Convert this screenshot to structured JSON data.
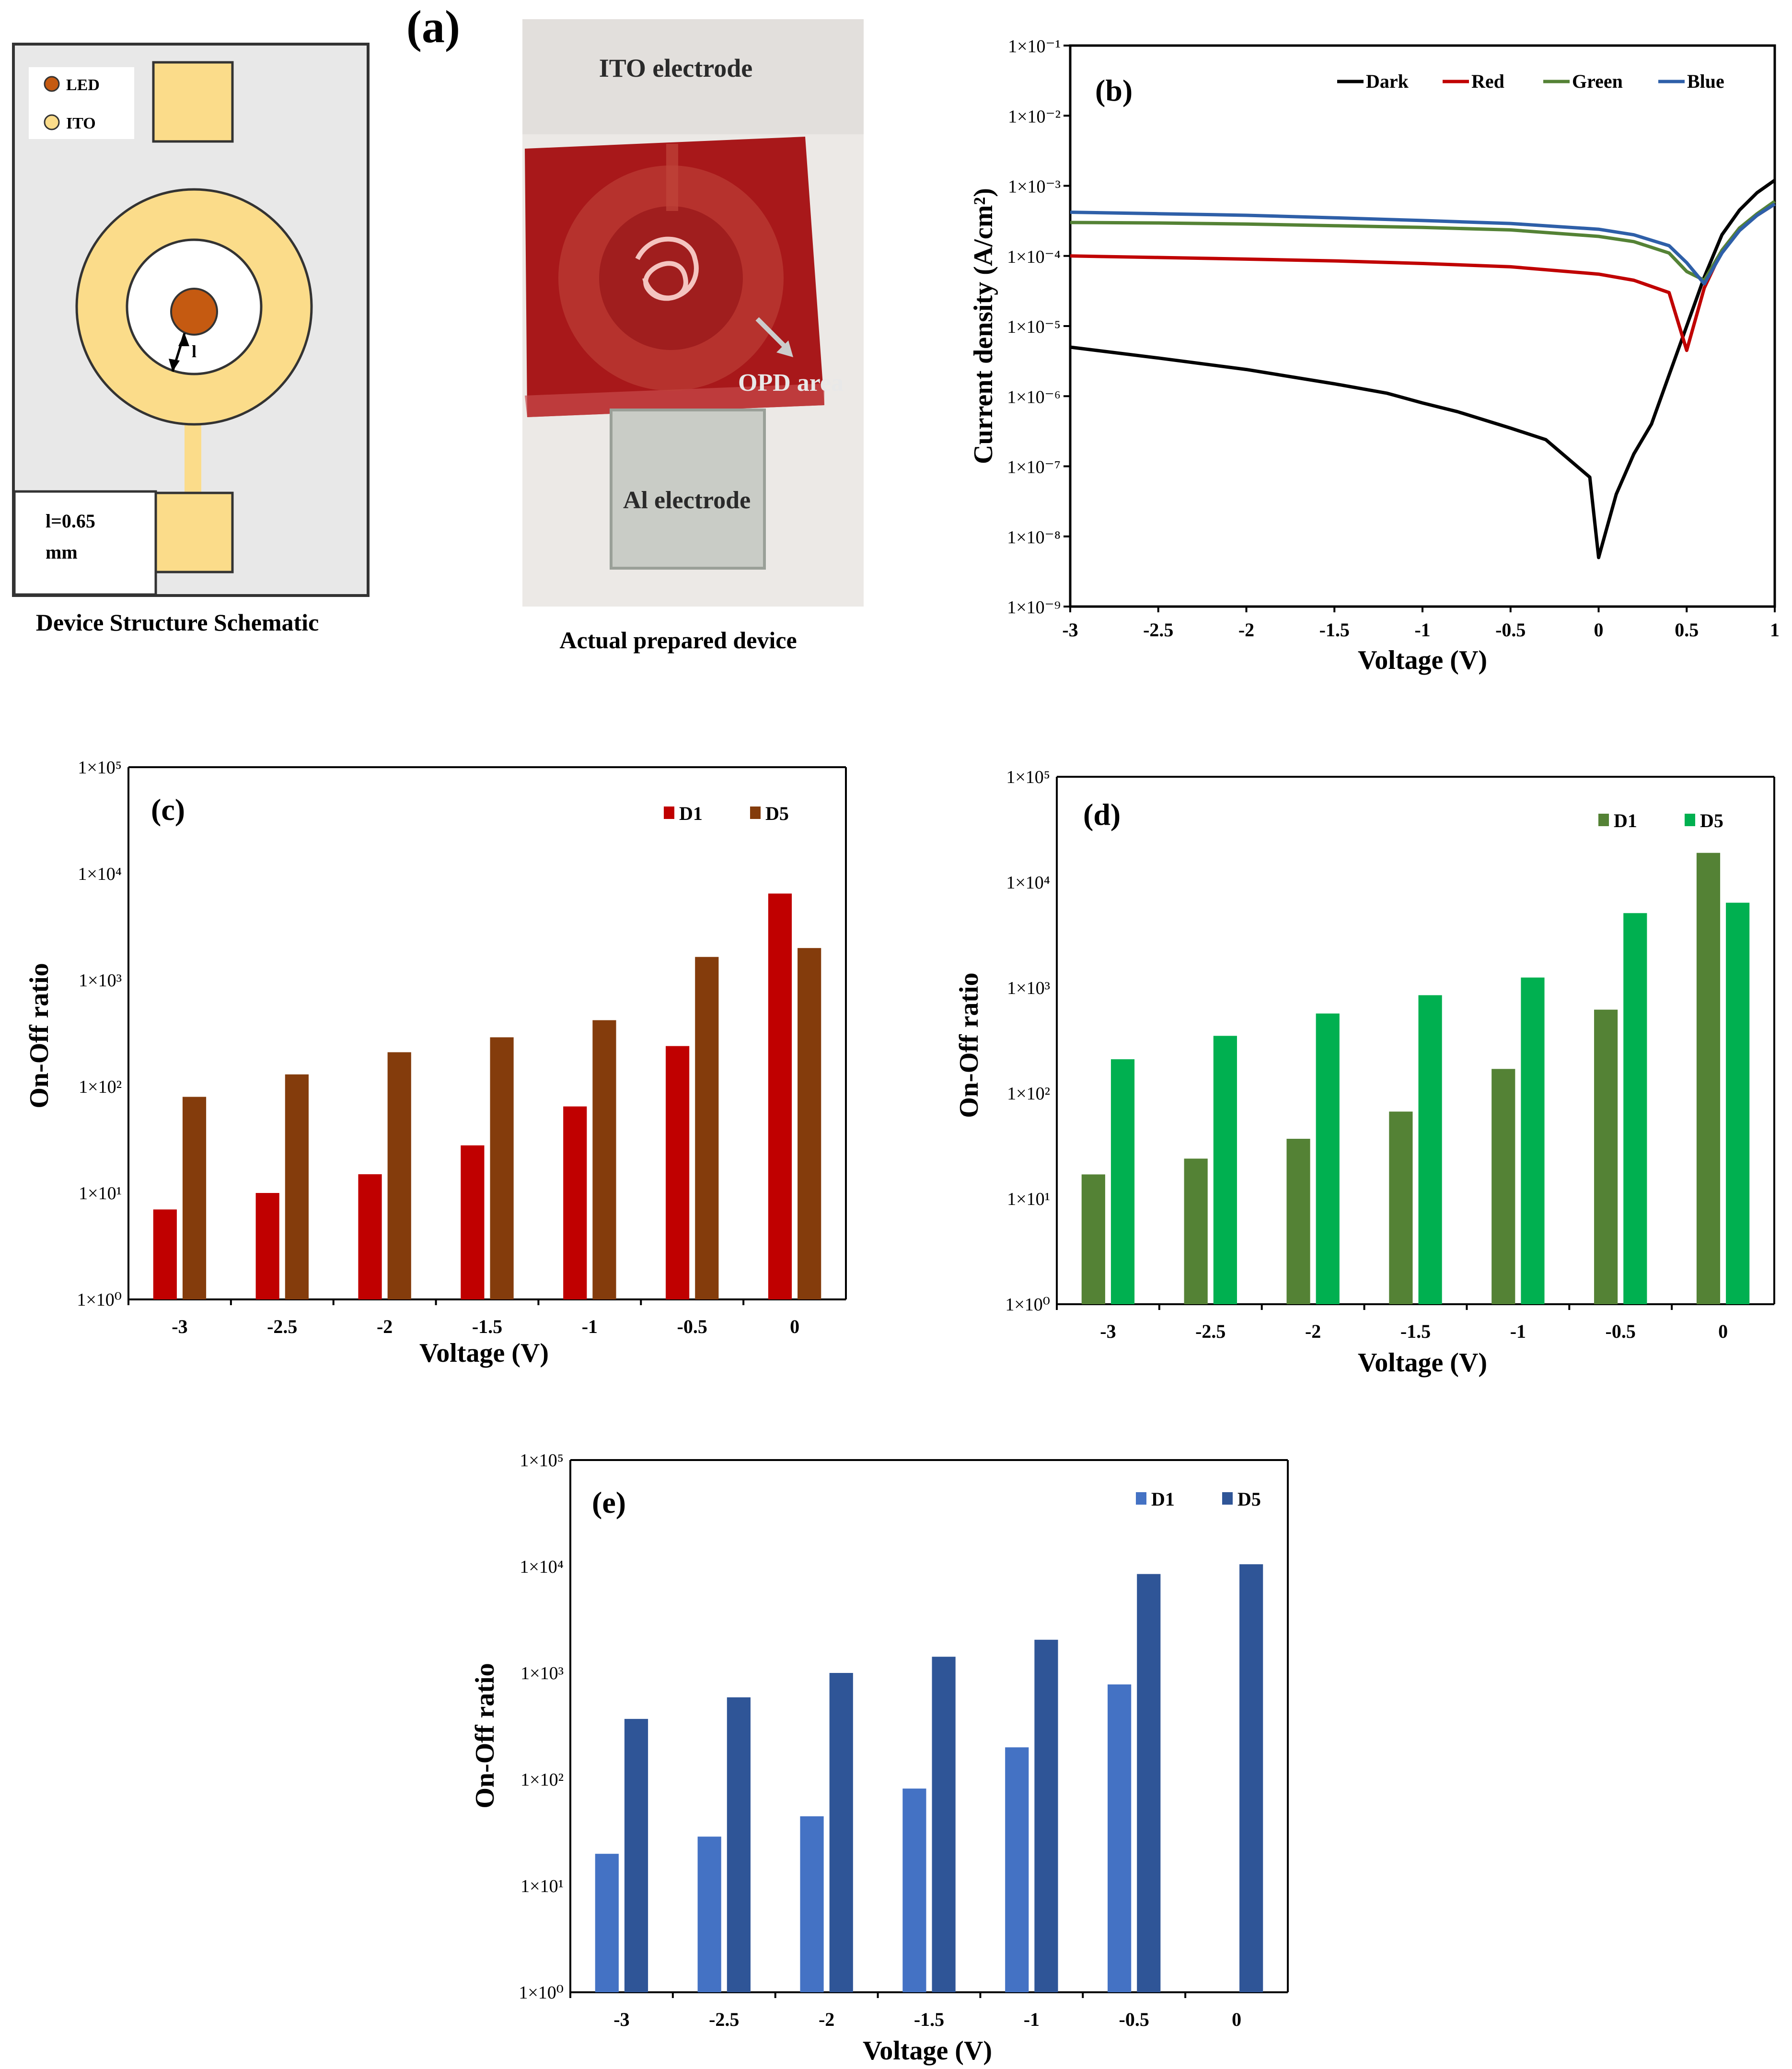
{
  "colors": {
    "dark": "#000000",
    "red": "#c00000",
    "green": "#548235",
    "blue": "#2e5fa8",
    "redD1": "#c00000",
    "redD5": "#843c0c",
    "greenD1": "#548235",
    "greenD5": "#00b050",
    "blueD1": "#4472c4",
    "blueD5": "#2f5597",
    "ito": "#fbdc8a",
    "led": "#c55a11",
    "schematicBg": "#e8e8e8"
  },
  "panel_a": {
    "label": "(a)",
    "schematic": {
      "legend_led": "LED",
      "legend_ito": "ITO",
      "dim_label": "l",
      "note_line1": "l=0.65",
      "note_line2": "mm",
      "caption": "Device Structure Schematic"
    },
    "photo": {
      "ito_label": "ITO electrode",
      "opd_label": "OPD area",
      "al_label": "Al electrode",
      "caption": "Actual prepared device"
    }
  },
  "chart_data": [
    {
      "id": "b",
      "type": "line",
      "label": "(b)",
      "xlabel": "Voltage (V)",
      "ylabel": "Current density (A/cm²)",
      "yscale": "log",
      "xlim": [
        -3,
        1
      ],
      "ylim_exp": [
        -9,
        -1
      ],
      "xticks": [
        "-3",
        "-2.5",
        "-2",
        "-1.5",
        "-1",
        "-0.5",
        "0",
        "0.5",
        "1"
      ],
      "yticks": [
        "1×10⁻⁹",
        "1×10⁻⁸",
        "1×10⁻⁷",
        "1×10⁻⁶",
        "1×10⁻⁵",
        "1×10⁻⁴",
        "1×10⁻³",
        "1×10⁻²",
        "1×10⁻¹"
      ],
      "legend_position": "top-right",
      "series": [
        {
          "name": "Dark",
          "color": "#000000",
          "x": [
            -3,
            -2.5,
            -2,
            -1.5,
            -1.2,
            -1,
            -0.8,
            -0.5,
            -0.3,
            -0.05,
            0,
            0.1,
            0.2,
            0.3,
            0.4,
            0.5,
            0.6,
            0.7,
            0.8,
            0.9,
            1
          ],
          "y": [
            5e-06,
            3.5e-06,
            2.4e-06,
            1.5e-06,
            1.1e-06,
            8e-07,
            6e-07,
            3.5e-07,
            2.4e-07,
            7e-08,
            5e-09,
            4e-08,
            1.5e-07,
            4e-07,
            2e-06,
            1e-05,
            5e-05,
            0.0002,
            0.00045,
            0.0008,
            0.0012
          ]
        },
        {
          "name": "Red",
          "color": "#c00000",
          "x": [
            -3,
            -2.5,
            -2,
            -1.5,
            -1,
            -0.5,
            0,
            0.2,
            0.4,
            0.5,
            0.6,
            0.7,
            0.8,
            0.9,
            1
          ],
          "y": [
            0.0001,
            9.5e-05,
            9e-05,
            8.5e-05,
            7.8e-05,
            7e-05,
            5.5e-05,
            4.5e-05,
            3e-05,
            4.5e-06,
            3.5e-05,
            0.00012,
            0.00025,
            0.00038,
            0.00055
          ]
        },
        {
          "name": "Green",
          "color": "#548235",
          "x": [
            -3,
            -2.5,
            -2,
            -1.5,
            -1,
            -0.5,
            0,
            0.2,
            0.4,
            0.5,
            0.6,
            0.7,
            0.8,
            0.9,
            1
          ],
          "y": [
            0.0003,
            0.000295,
            0.000285,
            0.00027,
            0.000255,
            0.000235,
            0.00019,
            0.00016,
            0.00011,
            6e-05,
            4.5e-05,
            0.00012,
            0.00025,
            0.0004,
            0.0006
          ]
        },
        {
          "name": "Blue",
          "color": "#2e5fa8",
          "x": [
            -3,
            -2.5,
            -2,
            -1.5,
            -1,
            -0.5,
            0,
            0.2,
            0.4,
            0.5,
            0.6,
            0.7,
            0.8,
            0.9,
            1
          ],
          "y": [
            0.00042,
            0.0004,
            0.00038,
            0.00035,
            0.00032,
            0.00029,
            0.00024,
            0.0002,
            0.00014,
            8e-05,
            4e-05,
            0.00011,
            0.00023,
            0.00038,
            0.00055
          ]
        }
      ]
    },
    {
      "id": "c",
      "type": "bar",
      "label": "(c)",
      "xlabel": "Voltage (V)",
      "ylabel": "On-Off ratio",
      "yscale": "log",
      "ylim_exp": [
        0,
        5
      ],
      "yticks": [
        "1×10⁰",
        "1×10¹",
        "1×10²",
        "1×10³",
        "1×10⁴",
        "1×10⁵"
      ],
      "categories": [
        "-3",
        "-2.5",
        "-2",
        "-1.5",
        "-1",
        "-0.5",
        "0"
      ],
      "legend_position": "top-right",
      "series": [
        {
          "name": "D1",
          "color": "#c00000",
          "values": [
            7,
            10,
            15,
            28,
            65,
            240,
            6500
          ]
        },
        {
          "name": "D5",
          "color": "#843c0c",
          "values": [
            80,
            130,
            210,
            290,
            420,
            1650,
            2000
          ]
        }
      ]
    },
    {
      "id": "d",
      "type": "bar",
      "label": "(d)",
      "xlabel": "Voltage (V)",
      "ylabel": "On-Off ratio",
      "yscale": "log",
      "ylim_exp": [
        0,
        5
      ],
      "yticks": [
        "1×10⁰",
        "1×10¹",
        "1×10²",
        "1×10³",
        "1×10⁴",
        "1×10⁵"
      ],
      "categories": [
        "-3",
        "-2.5",
        "-2",
        "-1.5",
        "-1",
        "-0.5",
        "0"
      ],
      "legend_position": "top-right",
      "series": [
        {
          "name": "D1",
          "color": "#548235",
          "values": [
            17,
            24,
            37,
            67,
            170,
            620,
            19000
          ]
        },
        {
          "name": "D5",
          "color": "#00b050",
          "values": [
            210,
            350,
            570,
            850,
            1250,
            5100,
            6400
          ]
        }
      ]
    },
    {
      "id": "e",
      "type": "bar",
      "label": "(e)",
      "xlabel": "Voltage (V)",
      "ylabel": "On-Off ratio",
      "yscale": "log",
      "ylim_exp": [
        0,
        5
      ],
      "yticks": [
        "1×10⁰",
        "1×10¹",
        "1×10²",
        "1×10³",
        "1×10⁴",
        "1×10⁵"
      ],
      "categories": [
        "-3",
        "-2.5",
        "-2",
        "-1.5",
        "-1",
        "-0.5",
        "0"
      ],
      "legend_position": "top-right",
      "series": [
        {
          "name": "D1",
          "color": "#4472c4",
          "values": [
            20,
            29,
            45,
            82,
            200,
            780,
            null
          ]
        },
        {
          "name": "D5",
          "color": "#2f5597",
          "values": [
            370,
            590,
            1000,
            1420,
            2050,
            8500,
            10500
          ]
        }
      ]
    }
  ]
}
